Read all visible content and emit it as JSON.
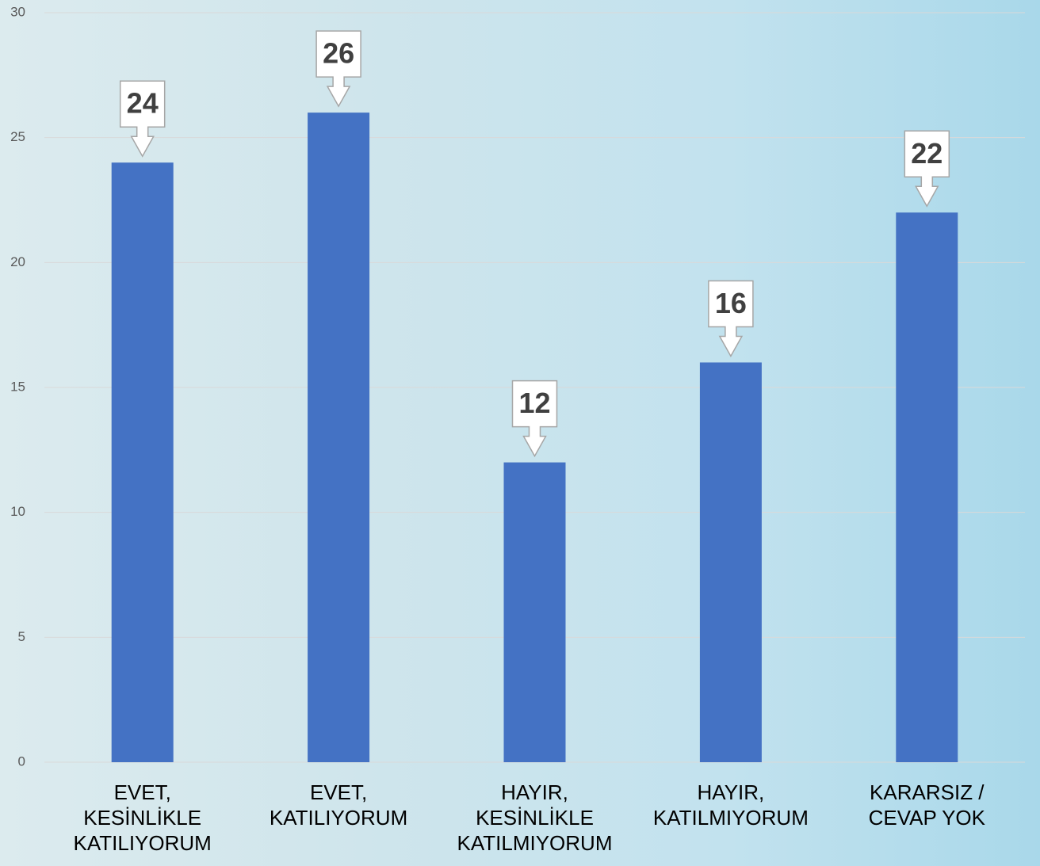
{
  "chart_data": {
    "type": "bar",
    "categories": [
      "EVET,\nKESİNLİKLE\nKATILIYORUM",
      "EVET,\nKATILIYORUM",
      "HAYIR,\nKESİNLİKLE\nKATILMIYORUM",
      "HAYIR,\nKATILMIYORUM",
      "KARARSIZ /\nCEVAP YOK"
    ],
    "values": [
      24,
      26,
      12,
      16,
      22
    ],
    "color": "#4472c4",
    "ylim": [
      0,
      30
    ],
    "yticks": [
      0,
      5,
      10,
      15,
      20,
      25,
      30
    ],
    "grid": true
  }
}
